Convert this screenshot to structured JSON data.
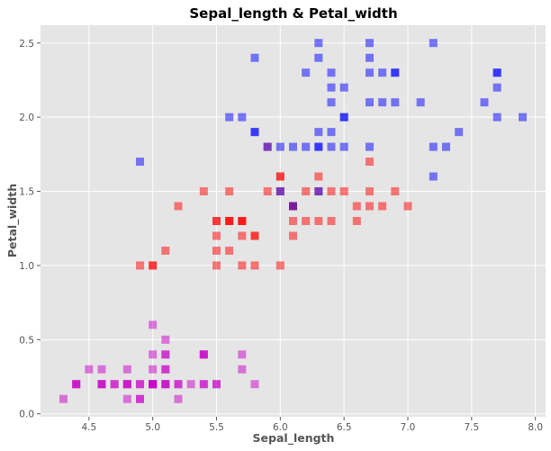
{
  "chart_data": {
    "type": "scatter",
    "title": "Sepal_length & Petal_width",
    "xlabel": "Sepal_length",
    "ylabel": "Petal_width",
    "xlim": [
      4.12,
      8.08
    ],
    "ylim": [
      -0.02,
      2.62
    ],
    "grid": true,
    "background": "#e5e5e5",
    "xticks": [
      "4.5",
      "5.0",
      "5.5",
      "6.0",
      "6.5",
      "7.0",
      "7.5",
      "8.0"
    ],
    "xtick_values": [
      4.5,
      5.0,
      5.5,
      6.0,
      6.5,
      7.0,
      7.5,
      8.0
    ],
    "yticks": [
      "0.0",
      "0.5",
      "1.0",
      "1.5",
      "2.0",
      "2.5"
    ],
    "ytick_values": [
      0.0,
      0.5,
      1.0,
      1.5,
      2.0,
      2.5
    ],
    "marker": "square",
    "alpha": 0.5,
    "series": [
      {
        "color": "#c800c8",
        "x": [
          5.1,
          4.9,
          4.7,
          4.6,
          5.0,
          5.4,
          4.6,
          5.0,
          4.4,
          4.9,
          5.4,
          4.8,
          4.8,
          4.3,
          5.8,
          5.7,
          5.4,
          5.1,
          5.7,
          5.1,
          5.4,
          5.1,
          4.6,
          5.1,
          4.8,
          5.0,
          5.0,
          5.2,
          5.2,
          4.7,
          4.8,
          5.4,
          5.2,
          5.5,
          4.9,
          5.0,
          5.5,
          4.9,
          4.4,
          5.1,
          5.0,
          4.5,
          4.4,
          5.0,
          5.1,
          4.8,
          5.1,
          4.6,
          5.3,
          5.0
        ],
        "y": [
          0.2,
          0.2,
          0.2,
          0.2,
          0.2,
          0.4,
          0.3,
          0.2,
          0.2,
          0.1,
          0.2,
          0.2,
          0.1,
          0.1,
          0.2,
          0.4,
          0.4,
          0.3,
          0.3,
          0.3,
          0.2,
          0.4,
          0.2,
          0.5,
          0.2,
          0.2,
          0.4,
          0.2,
          0.2,
          0.2,
          0.2,
          0.4,
          0.1,
          0.2,
          0.2,
          0.2,
          0.2,
          0.1,
          0.2,
          0.2,
          0.3,
          0.3,
          0.2,
          0.6,
          0.4,
          0.3,
          0.2,
          0.2,
          0.2,
          0.2
        ]
      },
      {
        "color": "#ff0000",
        "x": [
          7.0,
          6.4,
          6.9,
          5.5,
          6.5,
          5.7,
          6.3,
          4.9,
          6.6,
          5.2,
          5.0,
          5.9,
          6.0,
          6.1,
          5.6,
          6.7,
          5.6,
          5.8,
          6.2,
          5.6,
          5.9,
          6.1,
          6.3,
          6.1,
          6.4,
          6.6,
          6.8,
          6.7,
          6.0,
          5.7,
          5.5,
          5.5,
          5.8,
          6.0,
          5.4,
          6.0,
          6.7,
          6.3,
          5.6,
          5.5,
          5.5,
          6.1,
          5.8,
          5.0,
          5.6,
          5.7,
          5.7,
          6.2,
          5.1,
          5.7
        ],
        "y": [
          1.4,
          1.5,
          1.5,
          1.3,
          1.5,
          1.3,
          1.6,
          1.0,
          1.3,
          1.4,
          1.0,
          1.5,
          1.0,
          1.4,
          1.3,
          1.4,
          1.5,
          1.0,
          1.5,
          1.1,
          1.8,
          1.3,
          1.5,
          1.2,
          1.3,
          1.4,
          1.4,
          1.7,
          1.5,
          1.0,
          1.1,
          1.0,
          1.2,
          1.6,
          1.5,
          1.6,
          1.5,
          1.3,
          1.3,
          1.3,
          1.2,
          1.4,
          1.2,
          1.0,
          1.3,
          1.2,
          1.3,
          1.3,
          1.1,
          1.3
        ]
      },
      {
        "color": "#0000ff",
        "x": [
          6.3,
          5.8,
          7.1,
          6.3,
          6.5,
          7.6,
          4.9,
          7.3,
          6.7,
          7.2,
          6.5,
          6.4,
          6.8,
          5.7,
          5.8,
          6.4,
          6.5,
          7.7,
          7.7,
          6.0,
          6.9,
          5.6,
          7.7,
          6.3,
          6.7,
          7.2,
          6.2,
          6.1,
          6.4,
          7.2,
          7.4,
          7.9,
          6.4,
          6.3,
          6.1,
          7.7,
          6.3,
          6.4,
          6.0,
          6.9,
          6.7,
          6.9,
          5.8,
          6.8,
          6.7,
          6.7,
          6.3,
          6.5,
          6.2,
          5.9
        ],
        "y": [
          2.5,
          1.9,
          2.1,
          1.8,
          2.2,
          2.1,
          1.7,
          1.8,
          1.8,
          2.5,
          2.0,
          1.9,
          2.1,
          2.0,
          2.4,
          2.3,
          1.8,
          2.2,
          2.3,
          1.5,
          2.3,
          2.0,
          2.0,
          1.8,
          2.1,
          1.8,
          1.8,
          1.8,
          2.1,
          1.6,
          1.9,
          2.0,
          2.2,
          1.5,
          1.4,
          2.3,
          2.4,
          1.8,
          1.8,
          2.1,
          2.4,
          2.3,
          1.9,
          2.3,
          2.5,
          2.3,
          1.9,
          2.0,
          2.3,
          1.8
        ]
      }
    ]
  }
}
